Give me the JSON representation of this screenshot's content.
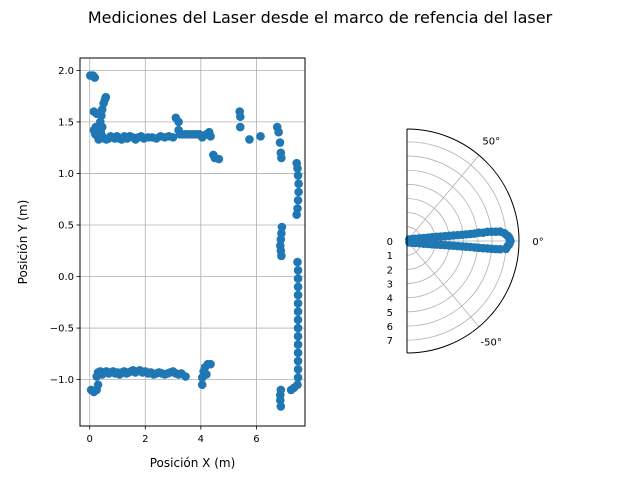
{
  "figure": {
    "suptitle": "Mediciones del Laser desde el marco de refencia del laser"
  },
  "chart_data": [
    {
      "type": "scatter",
      "xlabel": "Posición X (m)",
      "ylabel": "Posición Y (m)",
      "xlim": [
        -0.35,
        7.75
      ],
      "ylim": [
        -1.45,
        2.12
      ],
      "xticks": [
        0,
        2,
        4,
        6
      ],
      "yticks": [
        -1.0,
        -0.5,
        0.0,
        0.5,
        1.0,
        1.5,
        2.0
      ],
      "xtick_labels": [
        "0",
        "2",
        "4",
        "6"
      ],
      "ytick_labels": [
        "−1.0",
        "−0.5",
        "0.0",
        "0.5",
        "1.0",
        "1.5",
        "2.0"
      ],
      "grid": true,
      "color": "#1f77b4",
      "points": [
        [
          0.02,
          1.95
        ],
        [
          0.12,
          1.95
        ],
        [
          0.18,
          1.93
        ],
        [
          0.15,
          1.6
        ],
        [
          0.25,
          1.58
        ],
        [
          0.15,
          1.42
        ],
        [
          0.2,
          1.38
        ],
        [
          0.28,
          1.36
        ],
        [
          0.32,
          1.33
        ],
        [
          0.22,
          1.45
        ],
        [
          0.38,
          1.5
        ],
        [
          0.42,
          1.56
        ],
        [
          0.45,
          1.62
        ],
        [
          0.5,
          1.68
        ],
        [
          0.55,
          1.72
        ],
        [
          0.58,
          1.74
        ],
        [
          0.45,
          1.45
        ],
        [
          0.4,
          1.4
        ],
        [
          0.45,
          1.36
        ],
        [
          0.52,
          1.34
        ],
        [
          0.6,
          1.33
        ],
        [
          0.68,
          1.34
        ],
        [
          0.75,
          1.36
        ],
        [
          0.82,
          1.35
        ],
        [
          0.9,
          1.34
        ],
        [
          0.98,
          1.36
        ],
        [
          1.06,
          1.34
        ],
        [
          1.15,
          1.33
        ],
        [
          1.25,
          1.36
        ],
        [
          1.35,
          1.34
        ],
        [
          1.45,
          1.36
        ],
        [
          1.55,
          1.35
        ],
        [
          1.65,
          1.33
        ],
        [
          1.75,
          1.35
        ],
        [
          1.85,
          1.36
        ],
        [
          1.95,
          1.34
        ],
        [
          2.1,
          1.35
        ],
        [
          2.25,
          1.35
        ],
        [
          2.4,
          1.34
        ],
        [
          2.55,
          1.36
        ],
        [
          2.7,
          1.35
        ],
        [
          2.85,
          1.36
        ],
        [
          3.0,
          1.35
        ],
        [
          3.1,
          1.54
        ],
        [
          3.2,
          1.5
        ],
        [
          3.2,
          1.42
        ],
        [
          3.25,
          1.38
        ],
        [
          3.35,
          1.38
        ],
        [
          3.45,
          1.38
        ],
        [
          3.55,
          1.38
        ],
        [
          3.65,
          1.38
        ],
        [
          3.75,
          1.38
        ],
        [
          3.85,
          1.38
        ],
        [
          3.95,
          1.38
        ],
        [
          4.05,
          1.35
        ],
        [
          4.2,
          1.38
        ],
        [
          4.3,
          1.4
        ],
        [
          4.35,
          1.36
        ],
        [
          4.45,
          1.18
        ],
        [
          4.5,
          1.15
        ],
        [
          4.65,
          1.14
        ],
        [
          5.4,
          1.6
        ],
        [
          5.42,
          1.55
        ],
        [
          5.42,
          1.45
        ],
        [
          5.75,
          1.33
        ],
        [
          6.15,
          1.36
        ],
        [
          6.75,
          1.45
        ],
        [
          6.8,
          1.4
        ],
        [
          6.85,
          1.3
        ],
        [
          6.88,
          1.2
        ],
        [
          6.9,
          1.15
        ],
        [
          7.45,
          1.1
        ],
        [
          7.48,
          1.05
        ],
        [
          7.5,
          0.98
        ],
        [
          7.52,
          0.9
        ],
        [
          7.52,
          0.82
        ],
        [
          7.5,
          0.74
        ],
        [
          7.48,
          0.66
        ],
        [
          7.45,
          0.6
        ],
        [
          6.92,
          0.48
        ],
        [
          6.9,
          0.42
        ],
        [
          6.88,
          0.36
        ],
        [
          6.86,
          0.3
        ],
        [
          6.88,
          0.25
        ],
        [
          6.9,
          0.2
        ],
        [
          7.48,
          0.14
        ],
        [
          7.5,
          0.06
        ],
        [
          7.5,
          -0.02
        ],
        [
          7.5,
          -0.1
        ],
        [
          7.5,
          -0.18
        ],
        [
          7.5,
          -0.26
        ],
        [
          7.5,
          -0.34
        ],
        [
          7.5,
          -0.42
        ],
        [
          7.5,
          -0.5
        ],
        [
          7.5,
          -0.58
        ],
        [
          7.5,
          -0.66
        ],
        [
          7.5,
          -0.74
        ],
        [
          7.5,
          -0.82
        ],
        [
          7.5,
          -0.9
        ],
        [
          7.5,
          -0.98
        ],
        [
          7.48,
          -1.05
        ],
        [
          7.35,
          -1.08
        ],
        [
          7.25,
          -1.1
        ],
        [
          6.88,
          -1.1
        ],
        [
          6.86,
          -1.15
        ],
        [
          6.86,
          -1.2
        ],
        [
          6.88,
          -1.26
        ],
        [
          0.05,
          -1.1
        ],
        [
          0.15,
          -1.12
        ],
        [
          0.25,
          -1.1
        ],
        [
          0.3,
          -1.05
        ],
        [
          0.25,
          -0.97
        ],
        [
          0.3,
          -0.93
        ],
        [
          0.38,
          -0.92
        ],
        [
          0.45,
          -0.95
        ],
        [
          0.52,
          -0.93
        ],
        [
          0.6,
          -0.92
        ],
        [
          0.68,
          -0.94
        ],
        [
          0.76,
          -0.93
        ],
        [
          0.84,
          -0.92
        ],
        [
          0.92,
          -0.94
        ],
        [
          1.0,
          -0.93
        ],
        [
          1.08,
          -0.95
        ],
        [
          1.16,
          -0.93
        ],
        [
          1.24,
          -0.92
        ],
        [
          1.32,
          -0.94
        ],
        [
          1.4,
          -0.93
        ],
        [
          1.48,
          -0.92
        ],
        [
          1.56,
          -0.91
        ],
        [
          1.64,
          -0.93
        ],
        [
          1.72,
          -0.92
        ],
        [
          1.8,
          -0.91
        ],
        [
          1.9,
          -0.93
        ],
        [
          2.0,
          -0.92
        ],
        [
          2.1,
          -0.94
        ],
        [
          2.2,
          -0.93
        ],
        [
          2.3,
          -0.95
        ],
        [
          2.4,
          -0.94
        ],
        [
          2.5,
          -0.93
        ],
        [
          2.6,
          -0.94
        ],
        [
          2.7,
          -0.95
        ],
        [
          2.8,
          -0.94
        ],
        [
          2.9,
          -0.93
        ],
        [
          3.0,
          -0.92
        ],
        [
          3.1,
          -0.94
        ],
        [
          3.2,
          -0.95
        ],
        [
          3.3,
          -0.94
        ],
        [
          3.45,
          -0.97
        ],
        [
          4.05,
          -1.05
        ],
        [
          4.05,
          -0.98
        ],
        [
          4.1,
          -0.92
        ],
        [
          4.15,
          -0.88
        ],
        [
          4.25,
          -0.85
        ],
        [
          4.35,
          -0.85
        ],
        [
          4.2,
          -0.95
        ]
      ]
    },
    {
      "type": "scatter",
      "projection": "polar",
      "theta_ticks": [
        50,
        0,
        -50
      ],
      "theta_tick_labels": [
        "50°",
        "0°",
        "-50°"
      ],
      "r_ticks": [
        0,
        1,
        2,
        3,
        4,
        5,
        6,
        7
      ],
      "r_tick_labels": [
        "0",
        "1",
        "2",
        "3",
        "4",
        "5",
        "6",
        "7"
      ],
      "rlim": [
        0,
        7.9
      ],
      "theta_range_deg": [
        -90,
        90
      ],
      "grid": true,
      "color": "#1f77b4",
      "points_r_thetadeg": [
        [
          0.2,
          35
        ],
        [
          0.4,
          20
        ],
        [
          0.6,
          15
        ],
        [
          0.9,
          12
        ],
        [
          1.2,
          10
        ],
        [
          1.5,
          9
        ],
        [
          1.8,
          8.5
        ],
        [
          2.1,
          8
        ],
        [
          2.4,
          7.5
        ],
        [
          2.7,
          7.2
        ],
        [
          3.0,
          7
        ],
        [
          3.3,
          6.8
        ],
        [
          3.6,
          6.6
        ],
        [
          3.9,
          6.5
        ],
        [
          4.2,
          6.4
        ],
        [
          4.5,
          6.3
        ],
        [
          4.8,
          6.3
        ],
        [
          5.1,
          6.6
        ],
        [
          5.4,
          6.2
        ],
        [
          5.7,
          6.5
        ],
        [
          6.0,
          6.3
        ],
        [
          6.3,
          6.0
        ],
        [
          6.6,
          5.8
        ],
        [
          6.9,
          4.5
        ],
        [
          7.1,
          3.0
        ],
        [
          7.2,
          2.0
        ],
        [
          7.25,
          1.0
        ],
        [
          7.3,
          0.0
        ],
        [
          7.25,
          -1.0
        ],
        [
          7.2,
          -2.0
        ],
        [
          7.1,
          -3.0
        ],
        [
          7.0,
          -4.5
        ],
        [
          6.6,
          -5.0
        ],
        [
          6.3,
          -5.2
        ],
        [
          6.0,
          -5.3
        ],
        [
          5.7,
          -5.3
        ],
        [
          5.4,
          -5.4
        ],
        [
          5.1,
          -5.4
        ],
        [
          4.8,
          -5.4
        ],
        [
          4.5,
          -5.4
        ],
        [
          4.2,
          -5.5
        ],
        [
          3.9,
          -5.6
        ],
        [
          3.6,
          -5.7
        ],
        [
          3.3,
          -5.8
        ],
        [
          3.0,
          -6.0
        ],
        [
          2.7,
          -6.2
        ],
        [
          2.4,
          -6.5
        ],
        [
          2.1,
          -7.0
        ],
        [
          1.8,
          -7.5
        ],
        [
          1.5,
          -8.0
        ],
        [
          1.2,
          -9.0
        ],
        [
          0.9,
          -10
        ],
        [
          0.6,
          -13
        ],
        [
          0.4,
          -18
        ],
        [
          0.2,
          -30
        ]
      ]
    }
  ]
}
